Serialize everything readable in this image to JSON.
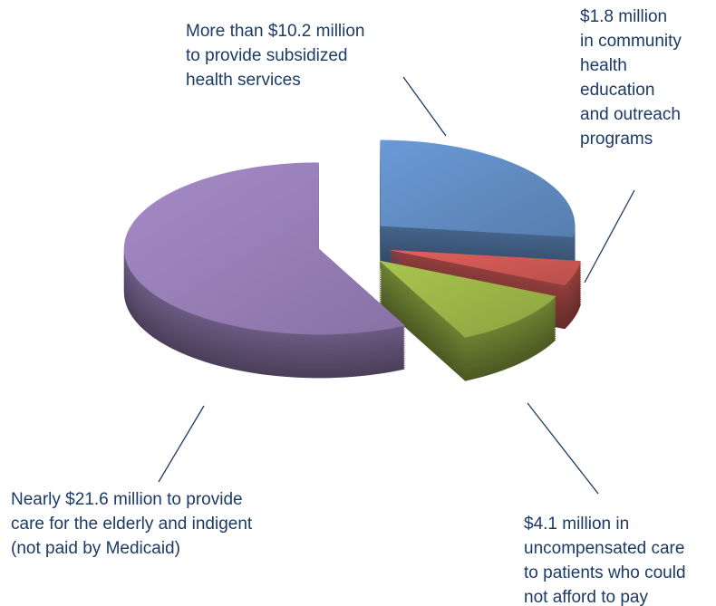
{
  "chart_data": {
    "type": "pie",
    "categories": [
      [
        "More than $10.2 million",
        "to provide subsidized",
        "health services"
      ],
      [
        "$1.8 million",
        "in community",
        "health",
        "education",
        "and outreach",
        "programs"
      ],
      [
        "$4.1 million in",
        "uncompensated care",
        "to patients who could",
        "not afford to pay"
      ],
      [
        "Nearly $21.6 million to provide",
        "care for the elderly and indigent",
        "(not paid by Medicaid)"
      ]
    ],
    "values": [
      10.2,
      1.8,
      4.1,
      21.6
    ],
    "colors": [
      "#6a9ad6",
      "#e0605c",
      "#a9c64e",
      "#a68bc8"
    ]
  }
}
